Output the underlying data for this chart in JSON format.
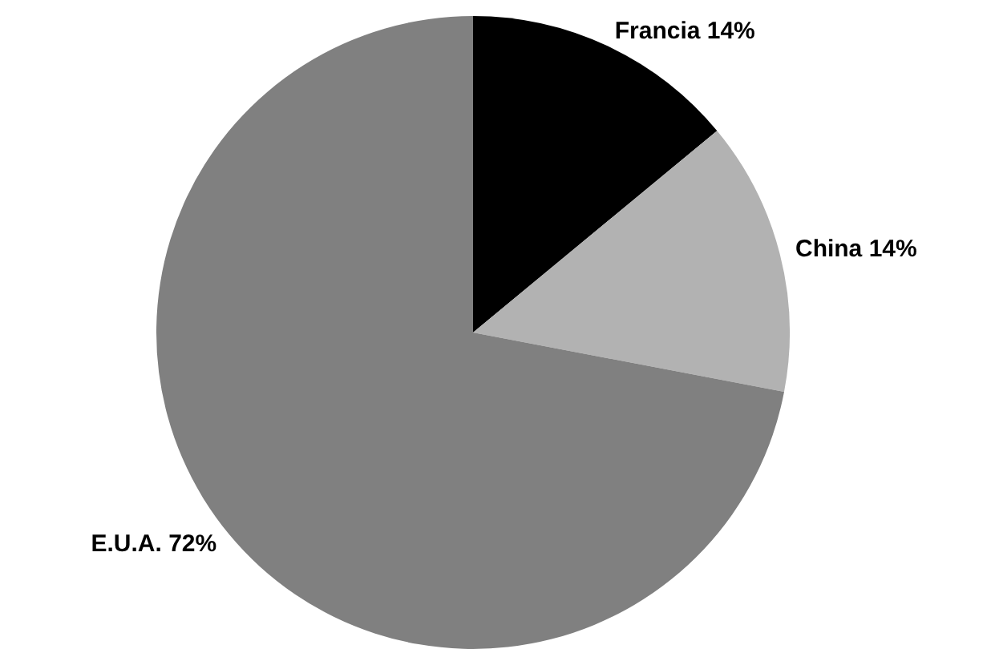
{
  "chart_data": {
    "type": "pie",
    "categories": [
      "Francia",
      "China",
      "E.U.A."
    ],
    "values": [
      14,
      14,
      72
    ],
    "value_labels": [
      "14%",
      "14%",
      "72%"
    ],
    "colors": [
      "#000000",
      "#b2b2b2",
      "#808080"
    ],
    "legend": false
  }
}
